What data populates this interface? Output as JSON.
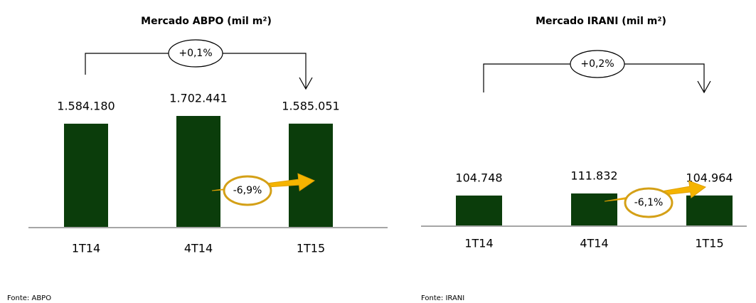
{
  "chart_data": [
    {
      "type": "bar",
      "title": "Mercado ABPO (mil m²)",
      "categories": [
        "1T14",
        "4T14",
        "1T15"
      ],
      "values": [
        1584180,
        1702441,
        1585051
      ],
      "value_labels": [
        "1.584.180",
        "1.702.441",
        "1.585.051"
      ],
      "color": "#0b3d0b",
      "annotations": [
        "+0,1%",
        "-6,9%"
      ],
      "source": "Fonte: ABPO"
    },
    {
      "type": "bar",
      "title": "Mercado IRANI (mil m²)",
      "categories": [
        "1T14",
        "4T14",
        "1T15"
      ],
      "values": [
        104748,
        111832,
        104964
      ],
      "value_labels": [
        "104.748",
        "111.832",
        "104.964"
      ],
      "color": "#0b3d0b",
      "annotations": [
        "+0,2%",
        "-6,1%"
      ],
      "source": "Fonte: IRANI"
    }
  ]
}
